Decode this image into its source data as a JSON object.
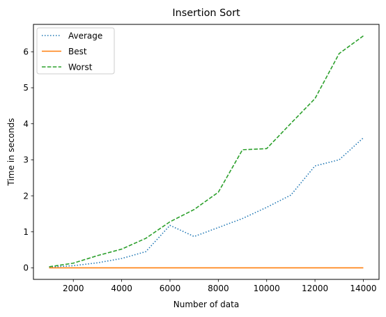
{
  "chart_data": {
    "type": "line",
    "title": "Insertion Sort",
    "xlabel": "Number of data",
    "ylabel": "Time in seconds",
    "xlim": [
      350,
      14650
    ],
    "ylim": [
      -0.32,
      6.76
    ],
    "grid": false,
    "legend_position": "top-left",
    "x_ticks": [
      2000,
      4000,
      6000,
      8000,
      10000,
      12000,
      14000
    ],
    "y_ticks": [
      0,
      1,
      2,
      3,
      4,
      5,
      6
    ],
    "x": [
      1000,
      2000,
      3000,
      4000,
      5000,
      6000,
      7000,
      8000,
      9000,
      10000,
      11000,
      12000,
      13000,
      14000
    ],
    "series": [
      {
        "name": "Average",
        "color": "#1f77b4",
        "style": "dotted",
        "values": [
          0.02,
          0.06,
          0.14,
          0.26,
          0.45,
          1.18,
          0.87,
          1.12,
          1.37,
          1.68,
          2.02,
          2.83,
          3.0,
          3.61
        ]
      },
      {
        "name": "Best",
        "color": "#ff7f0e",
        "style": "solid",
        "values": [
          0.0,
          0.0,
          0.0,
          0.0,
          0.0,
          0.0,
          0.0,
          0.0,
          0.0,
          0.0,
          0.0,
          0.0,
          0.0,
          0.0
        ]
      },
      {
        "name": "Worst",
        "color": "#2ca02c",
        "style": "dashed",
        "values": [
          0.03,
          0.13,
          0.34,
          0.52,
          0.82,
          1.28,
          1.62,
          2.1,
          3.28,
          3.31,
          4.01,
          4.7,
          5.95,
          6.44
        ]
      }
    ]
  }
}
